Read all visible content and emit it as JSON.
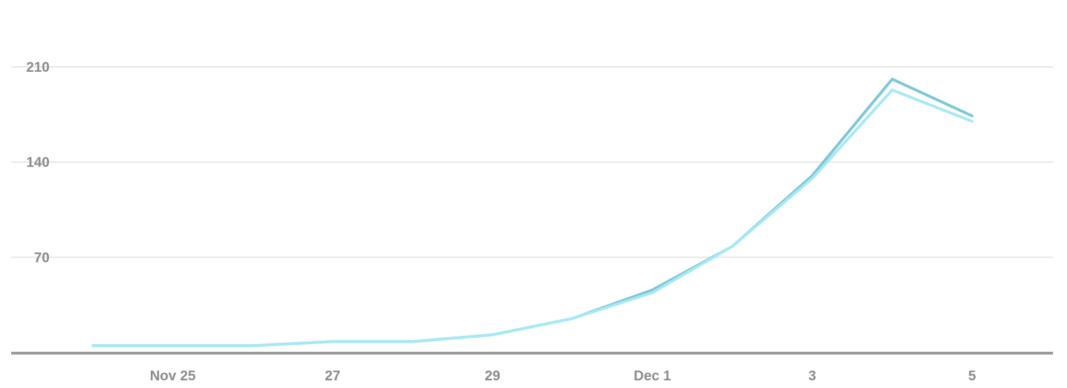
{
  "chart_data": {
    "type": "line",
    "title": "",
    "xlabel": "",
    "ylabel": "",
    "x": [
      "2024-11-24",
      "2024-11-25",
      "2024-11-26",
      "2024-11-27",
      "2024-11-28",
      "2024-11-29",
      "2024-11-30",
      "2024-12-01",
      "2024-12-02",
      "2024-12-03",
      "2024-12-04",
      "2024-12-05"
    ],
    "x_ticks": [
      {
        "index": 1,
        "label": "Nov 25"
      },
      {
        "index": 3,
        "label": "27"
      },
      {
        "index": 5,
        "label": "29"
      },
      {
        "index": 7,
        "label": "Dec 1"
      },
      {
        "index": 9,
        "label": "3"
      },
      {
        "index": 11,
        "label": "5"
      }
    ],
    "y_ticks": [
      70,
      140,
      210
    ],
    "ylim": [
      0,
      230
    ],
    "grid": true,
    "legend": "none",
    "series": [
      {
        "color": "#7cc7d6",
        "values": [
          5,
          5,
          5,
          8,
          8,
          13,
          25,
          46,
          78,
          130,
          201,
          174
        ]
      },
      {
        "color": "#a6e8f5",
        "values": [
          5,
          5,
          5,
          8,
          8,
          13,
          25,
          44,
          78,
          128,
          193,
          170
        ]
      }
    ],
    "colors": {
      "grid": "#e6e6e6",
      "baseline": "#9a9a9a",
      "tick_text": "#8a8a8a"
    }
  }
}
